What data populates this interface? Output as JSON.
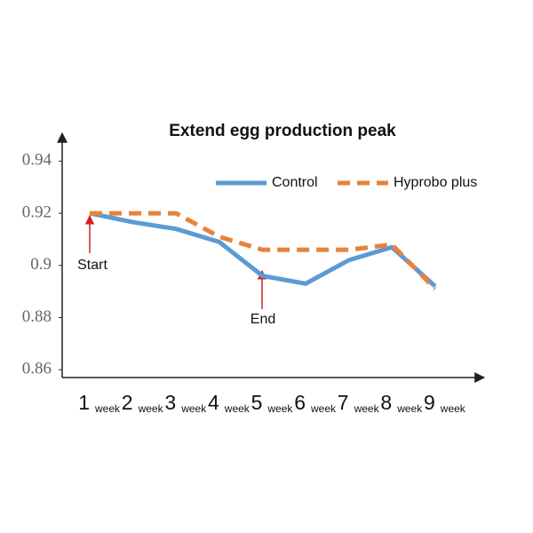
{
  "chart_data": {
    "type": "line",
    "title": "Extend egg production peak",
    "categories": [
      "1",
      "2",
      "3",
      "4",
      "5",
      "6",
      "7",
      "8",
      "9"
    ],
    "category_units": [
      "week",
      "week",
      "week",
      "week",
      "week",
      "week",
      "week",
      "week",
      "week"
    ],
    "series": [
      {
        "name": "Control",
        "color": "#5b9bd5",
        "dashed": false,
        "values": [
          0.92,
          0.9166,
          0.914,
          0.909,
          0.896,
          0.893,
          0.902,
          0.907,
          0.892
        ]
      },
      {
        "name": "Hyprobo plus",
        "color": "#e8823a",
        "dashed": true,
        "values": [
          0.92,
          0.92,
          0.92,
          0.911,
          0.906,
          0.906,
          0.906,
          0.908,
          0.891
        ]
      }
    ],
    "ylim": [
      0.857,
      0.95
    ],
    "yticks": [
      0.86,
      0.88,
      0.9,
      0.92,
      0.94
    ],
    "annotations": [
      "Start",
      "End"
    ]
  }
}
